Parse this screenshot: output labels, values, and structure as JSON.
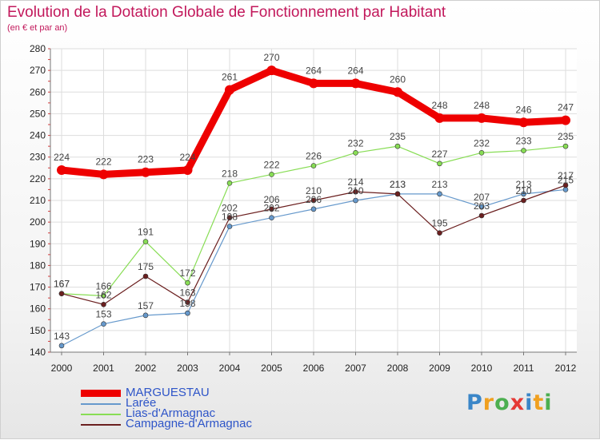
{
  "chart_data": {
    "type": "line",
    "title": "Evolution de la Dotation Globale de Fonctionnement par Habitant",
    "subtitle": "(en € et par an)",
    "xlabel": "",
    "ylabel": "",
    "ylim": [
      140,
      280
    ],
    "yticks": [
      "140",
      "150",
      "160",
      "170",
      "180",
      "190",
      "200",
      "210",
      "220",
      "230",
      "240",
      "250",
      "260",
      "270",
      "280"
    ],
    "categories": [
      "2000",
      "2001",
      "2002",
      "2003",
      "2004",
      "2005",
      "2006",
      "2007",
      "2008",
      "2009",
      "2010",
      "2011",
      "2012"
    ],
    "grid": true,
    "series": [
      {
        "name": "MARGUESTAU",
        "color": "#ee0000",
        "values": [
          224,
          222,
          223,
          224,
          261,
          270,
          264,
          264,
          260,
          248,
          248,
          246,
          247
        ]
      },
      {
        "name": "Larée",
        "color": "#6699cc",
        "values": [
          143,
          153,
          157,
          158,
          198,
          202,
          206,
          210,
          213,
          213,
          207,
          213,
          215
        ]
      },
      {
        "name": "Lias-d'Armagnac",
        "color": "#88dd55",
        "values": [
          167,
          166,
          191,
          172,
          218,
          222,
          226,
          232,
          235,
          227,
          232,
          233,
          235
        ]
      },
      {
        "name": "Campagne-d'Armagnac",
        "color": "#6b1f1f",
        "values": [
          167,
          162,
          175,
          163,
          202,
          206,
          210,
          214,
          213,
          195,
          203,
          210,
          217
        ]
      }
    ],
    "point_labels": [
      [
        "224",
        "222",
        "223",
        "224",
        "261",
        "270",
        "264",
        "264",
        "260",
        "248",
        "248",
        "246",
        "247"
      ],
      [
        "143",
        "153",
        "157",
        "158",
        "198",
        "202",
        "206",
        "210",
        "213",
        "213",
        "207",
        "213",
        "215"
      ],
      [
        "167",
        "166",
        "191",
        "172",
        "218",
        "222",
        "226",
        "232",
        "235",
        "227",
        "232",
        "233",
        "235"
      ],
      [
        "167",
        "162",
        "175",
        "163",
        "202",
        "206",
        "210",
        "214",
        "213",
        "195",
        "203",
        "210",
        "217"
      ]
    ]
  },
  "legend": {
    "items": [
      {
        "name": "MARGUESTAU",
        "color": "#ee0000"
      },
      {
        "name": "Larée",
        "color": "#6699cc"
      },
      {
        "name": "Lias-d'Armagnac",
        "color": "#88dd55"
      },
      {
        "name": "Campagne-d'Armagnac",
        "color": "#6b1f1f"
      }
    ]
  },
  "logo": {
    "letters": [
      "P",
      "r",
      "o",
      "x",
      "i",
      "t",
      "i"
    ],
    "colors": [
      "#3a86c8",
      "#f0a020",
      "#4caf50",
      "#e53935",
      "#3a86c8",
      "#f0a020",
      "#4caf50"
    ]
  }
}
